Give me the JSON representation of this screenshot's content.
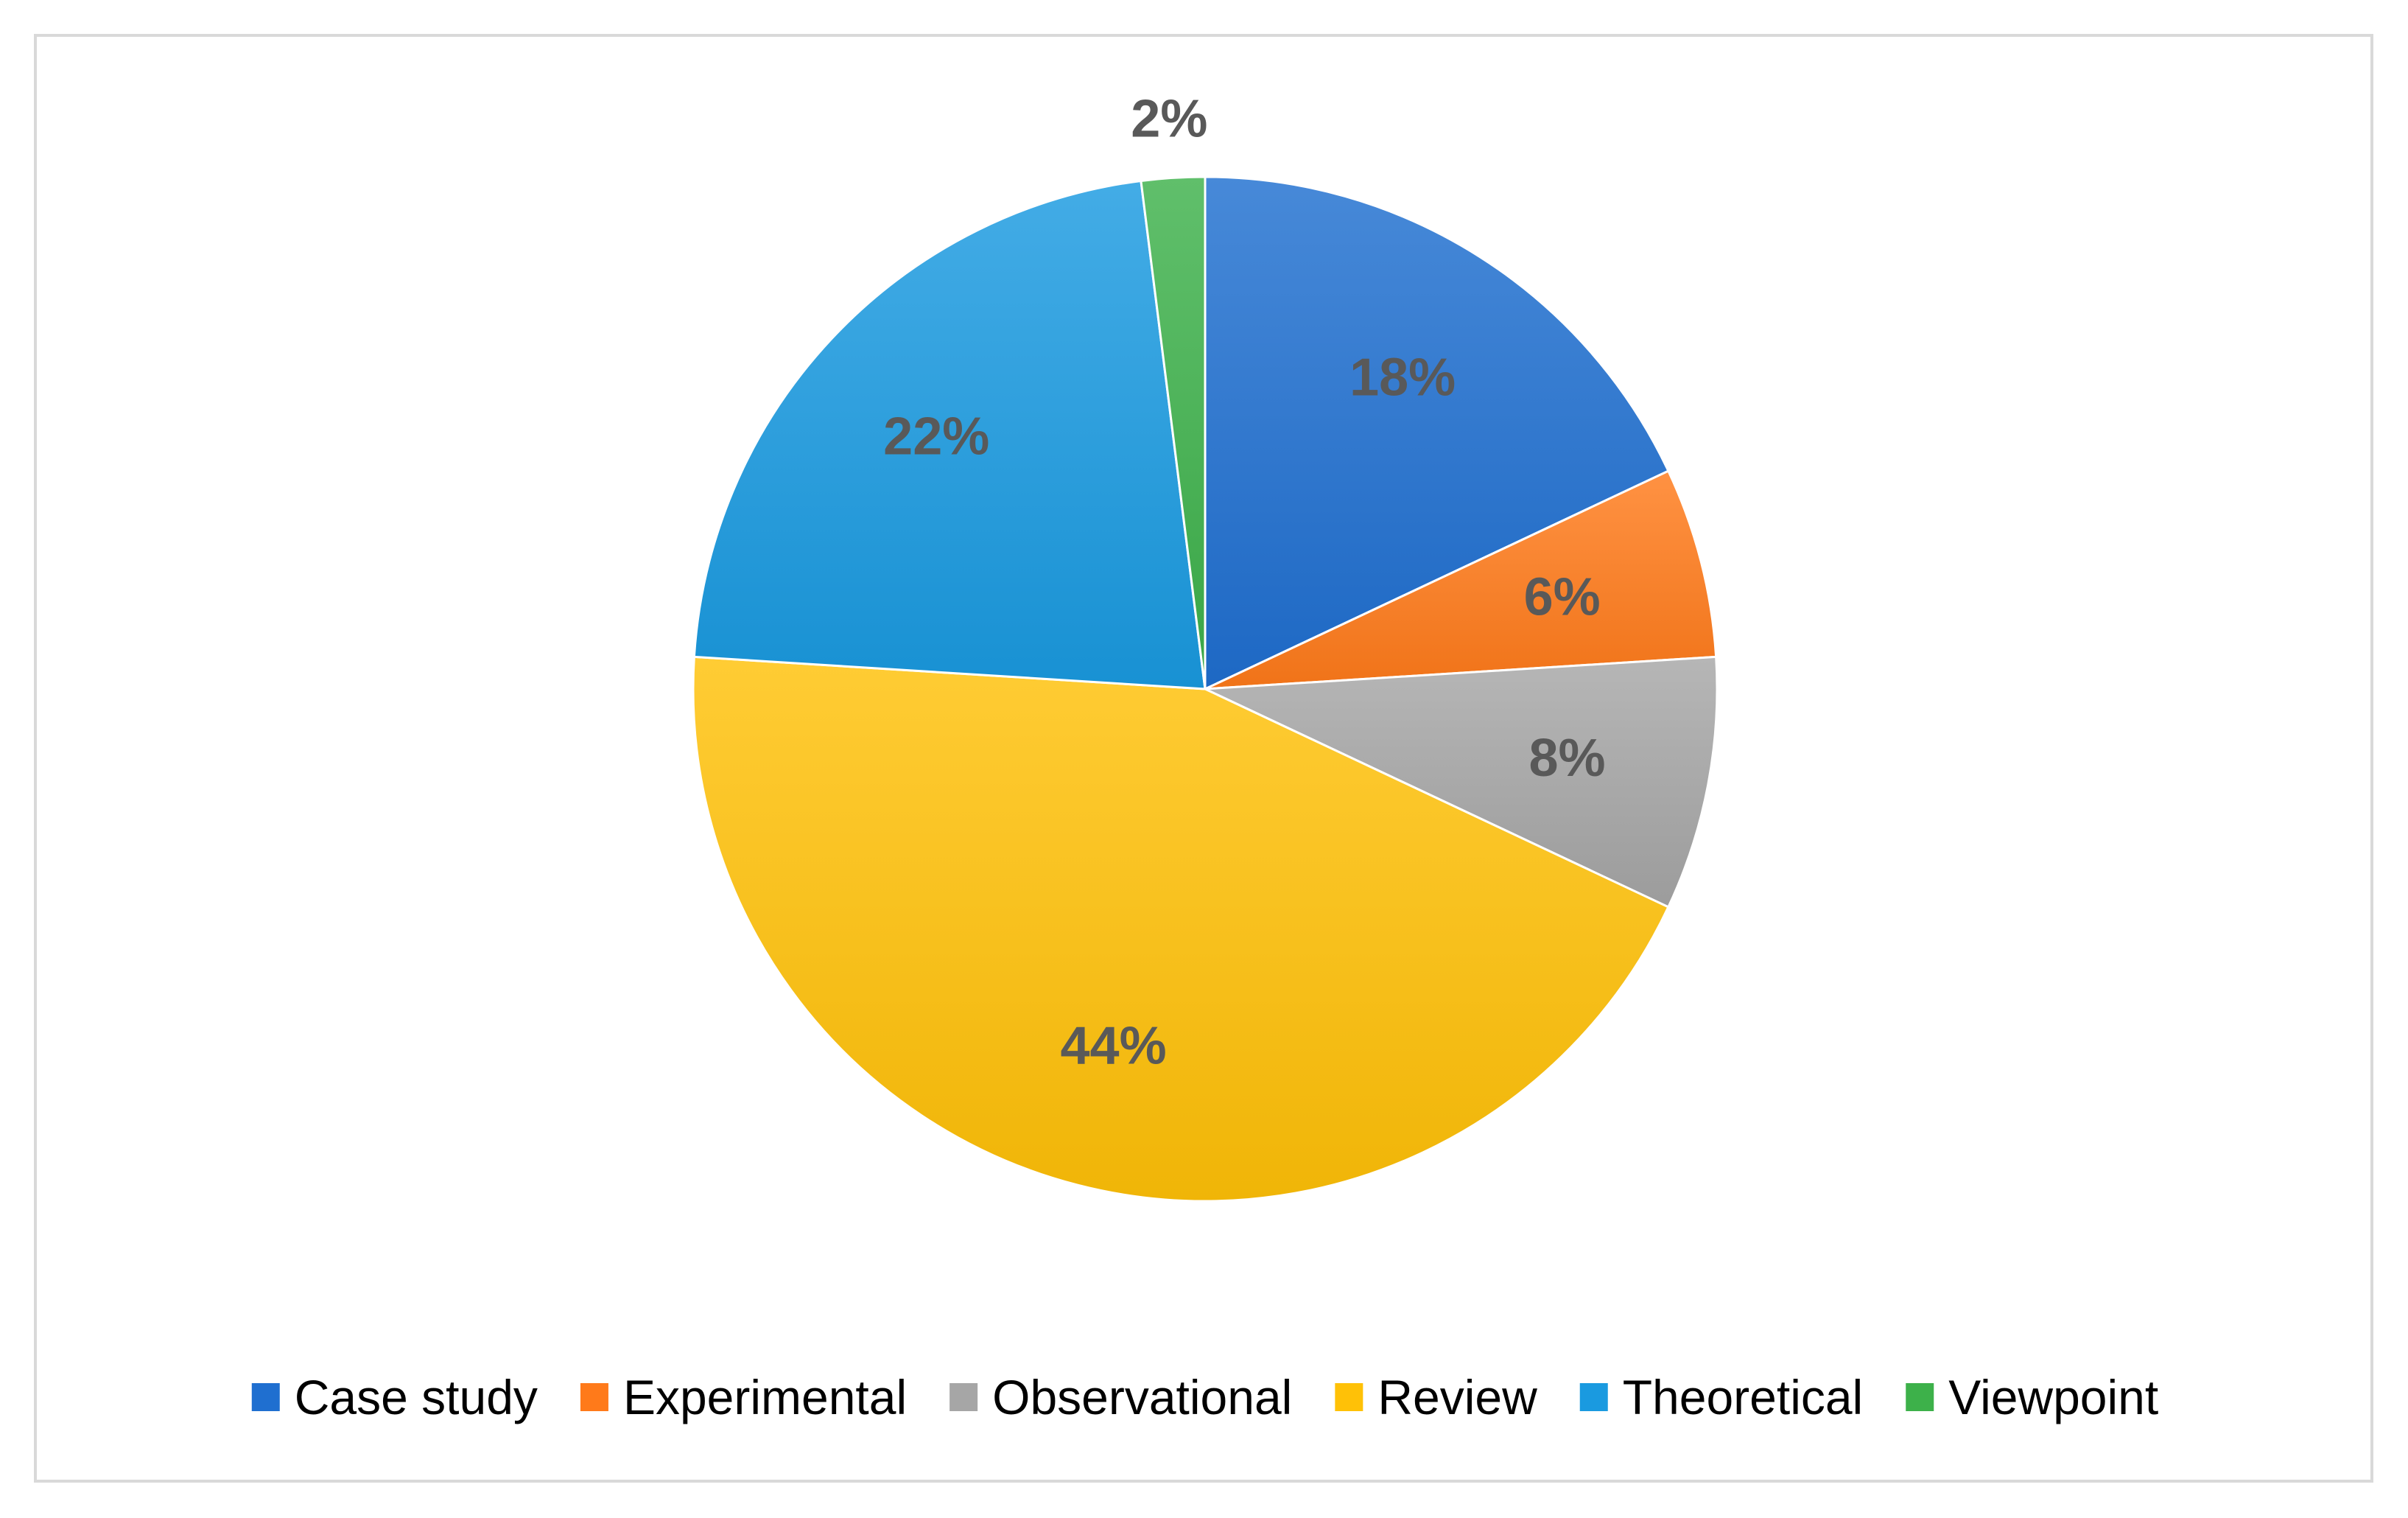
{
  "chart_data": {
    "type": "pie",
    "title": "",
    "legend_position": "bottom",
    "slices": [
      {
        "label": "Case study",
        "value": 18,
        "data_label": "18%",
        "color": "#1F6FD0"
      },
      {
        "label": "Experimental",
        "value": 6,
        "data_label": "6%",
        "color": "#FF7A1A"
      },
      {
        "label": "Observational",
        "value": 8,
        "data_label": "8%",
        "color": "#A6A6A6"
      },
      {
        "label": "Review",
        "value": 44,
        "data_label": "44%",
        "color": "#FFC107"
      },
      {
        "label": "Theoretical",
        "value": 22,
        "data_label": "22%",
        "color": "#1A9AE0"
      },
      {
        "label": "Viewpoint",
        "value": 2,
        "data_label": "2%",
        "color": "#3DB14A"
      }
    ],
    "data_label_color": "#595959"
  }
}
